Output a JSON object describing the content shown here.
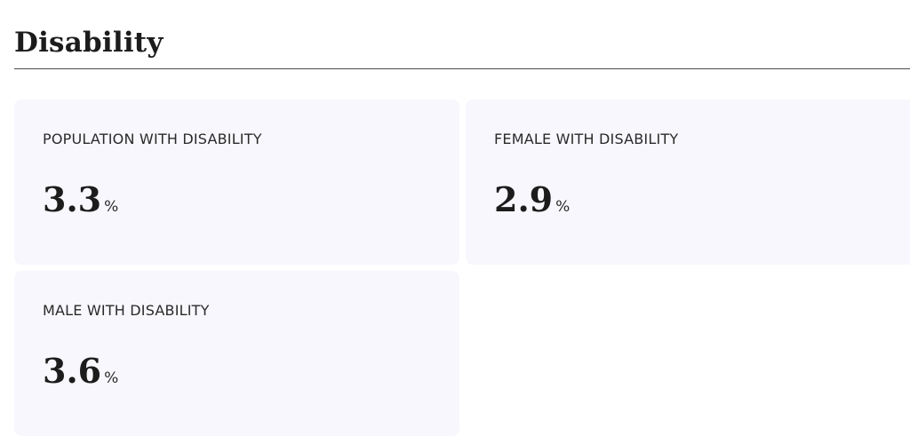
{
  "section": {
    "title": "Disability"
  },
  "cards": [
    {
      "label": "POPULATION WITH DISABILITY",
      "value": "3.3",
      "unit": "%"
    },
    {
      "label": "FEMALE WITH DISABILITY",
      "value": "2.9",
      "unit": "%"
    },
    {
      "label": "MALE WITH DISABILITY",
      "value": "3.6",
      "unit": "%"
    }
  ],
  "colors": {
    "card_background": "#f8f7fd",
    "text": "#1c1c1c",
    "rule": "#4a4a4a"
  }
}
